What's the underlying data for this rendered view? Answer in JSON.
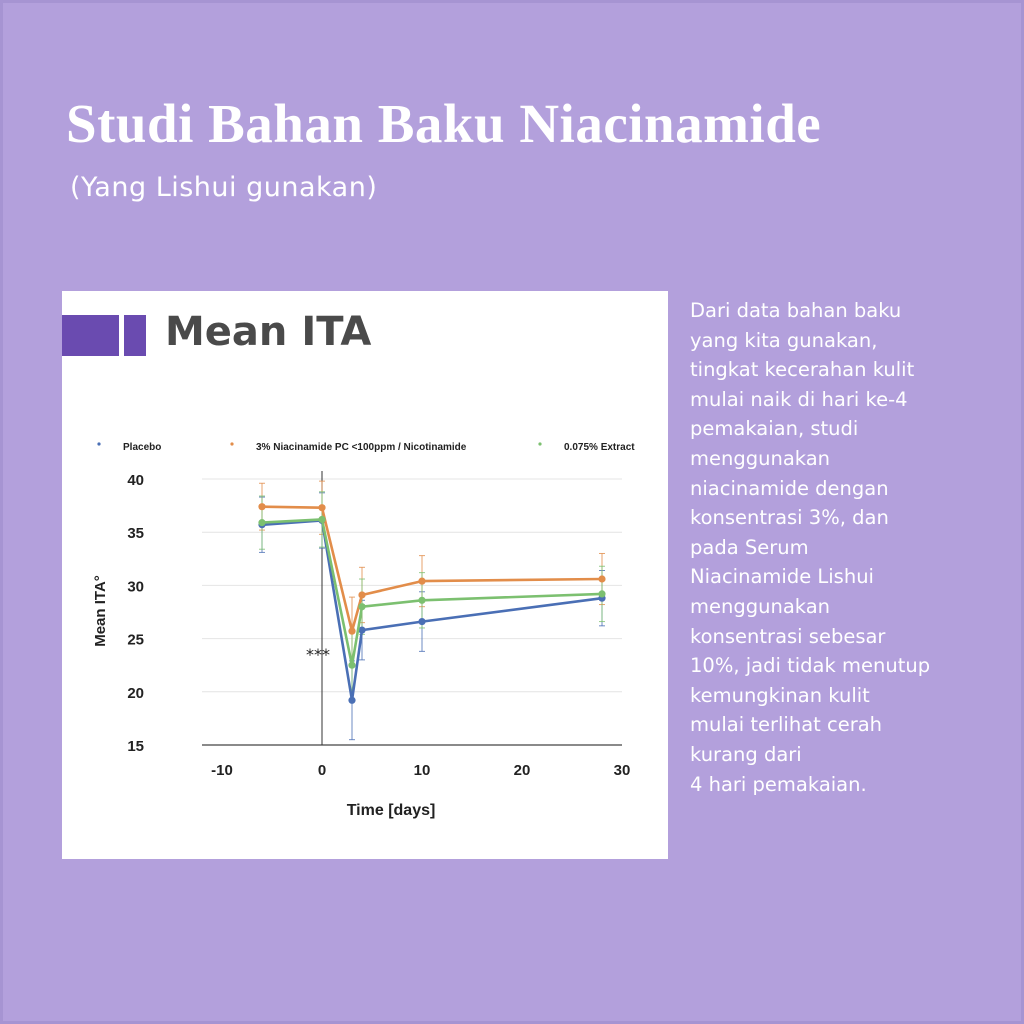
{
  "header": {
    "title": "Studi Bahan Baku Niacinamide",
    "subtitle": "(Yang Lishui gunakan)"
  },
  "card": {
    "title": "Mean ITA"
  },
  "description_lines": [
    "Dari data bahan baku",
    "yang kita gunakan,",
    "tingkat kecerahan kulit",
    "mulai naik di hari ke-4",
    "pemakaian, studi",
    "menggunakan",
    "niacinamide dengan",
    "konsentrasi 3%, dan",
    "pada Serum",
    "Niacinamide Lishui",
    "menggunakan",
    "konsentrasi sebesar",
    "10%, jadi tidak menutup",
    "kemungkinan kulit",
    "mulai terlihat cerah",
    "kurang dari",
    "4 hari pemakaian."
  ],
  "colors": {
    "background": "#b3a0dc",
    "accent": "#6a4bb0"
  },
  "chart_data": {
    "type": "line",
    "title": "Mean ITA",
    "xlabel": "Time [days]",
    "ylabel": "Mean ITA°",
    "xlim": [
      -10,
      30
    ],
    "ylim": [
      15,
      40
    ],
    "xticks": [
      -10,
      0,
      10,
      20,
      30
    ],
    "yticks": [
      15,
      20,
      25,
      30,
      35,
      40
    ],
    "grid": "horizontal",
    "legend": "top",
    "annotation": {
      "text": "***",
      "x": 0,
      "y": 23
    },
    "marker_line_x": 0,
    "series": [
      {
        "name": "Placebo",
        "color": "#4a6fb5",
        "points": [
          {
            "x": -6,
            "y": 35.7,
            "err": 2.6
          },
          {
            "x": 0,
            "y": 36.1,
            "err": 2.6
          },
          {
            "x": 3,
            "y": 19.2,
            "err": 3.7
          },
          {
            "x": 4,
            "y": 25.8,
            "err": 2.8
          },
          {
            "x": 10,
            "y": 26.6,
            "err": 2.8
          },
          {
            "x": 28,
            "y": 28.8,
            "err": 2.6
          }
        ]
      },
      {
        "name": "3% Niacinamide PC <100ppm / Nicotinamide",
        "color": "#e28d4a",
        "points": [
          {
            "x": -6,
            "y": 37.4,
            "err": 2.2
          },
          {
            "x": 0,
            "y": 37.3,
            "err": 2.5
          },
          {
            "x": 3,
            "y": 25.7,
            "err": 3.2
          },
          {
            "x": 4,
            "y": 29.1,
            "err": 2.6
          },
          {
            "x": 10,
            "y": 30.4,
            "err": 2.4
          },
          {
            "x": 28,
            "y": 30.6,
            "err": 2.4
          }
        ]
      },
      {
        "name": "0.075% Extract",
        "color": "#7cc070",
        "points": [
          {
            "x": -6,
            "y": 35.9,
            "err": 2.5
          },
          {
            "x": 0,
            "y": 36.2,
            "err": 2.6
          },
          {
            "x": 3,
            "y": 22.5,
            "err": 3.4
          },
          {
            "x": 4,
            "y": 28.0,
            "err": 2.6
          },
          {
            "x": 10,
            "y": 28.6,
            "err": 2.6
          },
          {
            "x": 28,
            "y": 29.2,
            "err": 2.6
          }
        ]
      }
    ]
  }
}
